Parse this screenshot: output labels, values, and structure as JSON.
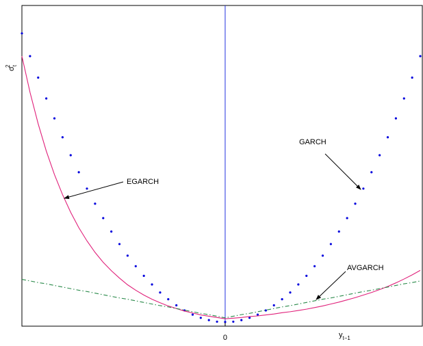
{
  "chart_data": {
    "type": "line",
    "x_label": {
      "base": "y",
      "sub": "t−1"
    },
    "y_label": {
      "base": "σ",
      "sub": "t",
      "sup": "2"
    },
    "x": [
      -1,
      -0.96,
      -0.92,
      -0.88,
      -0.84,
      -0.8,
      -0.76,
      -0.72,
      -0.68,
      -0.64,
      -0.6,
      -0.56,
      -0.52,
      -0.48,
      -0.44,
      -0.4,
      -0.36,
      -0.32,
      -0.28,
      -0.24,
      -0.2,
      -0.16,
      -0.12,
      -0.08,
      -0.04,
      0,
      0.04,
      0.08,
      0.12,
      0.16,
      0.2,
      0.24,
      0.28,
      0.32,
      0.36,
      0.4,
      0.44,
      0.48,
      0.52,
      0.56,
      0.6,
      0.64,
      0.68,
      0.72,
      0.76,
      0.8,
      0.84,
      0.88,
      0.92,
      0.96
    ],
    "series": [
      {
        "name": "GARCH",
        "color": "#0000dd",
        "style": "dots",
        "values": [
          0.913,
          0.842,
          0.775,
          0.71,
          0.648,
          0.589,
          0.533,
          0.48,
          0.429,
          0.382,
          0.337,
          0.295,
          0.256,
          0.22,
          0.187,
          0.157,
          0.13,
          0.105,
          0.084,
          0.065,
          0.049,
          0.036,
          0.026,
          0.019,
          0.014,
          0.013,
          0.014,
          0.019,
          0.026,
          0.036,
          0.049,
          0.065,
          0.084,
          0.105,
          0.13,
          0.157,
          0.187,
          0.22,
          0.256,
          0.295,
          0.337,
          0.382,
          0.429,
          0.48,
          0.533,
          0.589,
          0.648,
          0.71,
          0.775,
          0.842
        ]
      },
      {
        "name": "EGARCH",
        "color": "#e0207a",
        "style": "solid",
        "values": [
          0.842,
          0.729,
          0.631,
          0.546,
          0.473,
          0.41,
          0.355,
          0.307,
          0.266,
          0.23,
          0.199,
          0.173,
          0.15,
          0.129,
          0.112,
          0.097,
          0.084,
          0.073,
          0.063,
          0.055,
          0.047,
          0.041,
          0.035,
          0.031,
          0.027,
          0.023,
          0.025,
          0.027,
          0.03,
          0.032,
          0.035,
          0.038,
          0.042,
          0.045,
          0.049,
          0.053,
          0.058,
          0.063,
          0.069,
          0.075,
          0.082,
          0.089,
          0.097,
          0.105,
          0.114,
          0.124,
          0.135,
          0.147,
          0.16,
          0.174
        ]
      },
      {
        "name": "AVGARCH",
        "color": "#2a8a4a",
        "style": "dashdot",
        "values": [
          0.146,
          0.141,
          0.136,
          0.132,
          0.127,
          0.122,
          0.117,
          0.112,
          0.108,
          0.103,
          0.098,
          0.093,
          0.088,
          0.084,
          0.079,
          0.074,
          0.069,
          0.064,
          0.06,
          0.055,
          0.05,
          0.045,
          0.04,
          0.036,
          0.031,
          0.026,
          0.031,
          0.036,
          0.04,
          0.045,
          0.05,
          0.055,
          0.06,
          0.064,
          0.069,
          0.074,
          0.079,
          0.084,
          0.088,
          0.093,
          0.098,
          0.103,
          0.108,
          0.112,
          0.117,
          0.122,
          0.127,
          0.132,
          0.136,
          0.141
        ]
      }
    ],
    "annotations": [
      "EGARCH",
      "GARCH",
      "AVGARCH"
    ],
    "xlim": [
      -1,
      0.97
    ],
    "ylim": [
      0,
      1
    ],
    "xticks": [
      0
    ],
    "zero_line_color": "#2030e0"
  }
}
